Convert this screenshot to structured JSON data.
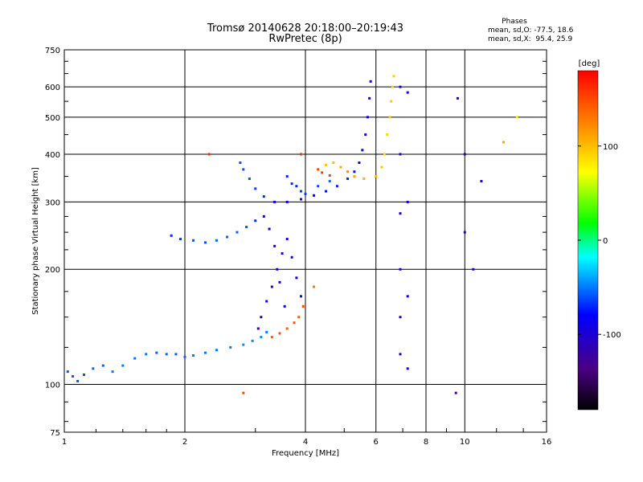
{
  "header": {
    "title_line1": "Tromsø 20140628 20:18:00–20:19:43",
    "title_line2": "RwPretec (8p)"
  },
  "phases_box": {
    "heading": "Phases",
    "o_line": "mean, sd,O: -77.5, 18.6",
    "x_line": "mean, sd,X:  95.4, 25.9"
  },
  "colorbar": {
    "label": "[deg]",
    "tick_labels": [
      "100",
      "0",
      "-100"
    ],
    "tick_values": [
      100,
      0,
      -100
    ],
    "range": [
      -180,
      180
    ]
  },
  "chart_data": {
    "type": "scatter",
    "title": "Tromsø 20140628 20:18:00–20:19:43",
    "subtitle": "RwPretec (8p)",
    "xlabel": "Frequency [MHz]",
    "ylabel": "Stationary phase Virtual Height [km]",
    "xscale": "log",
    "yscale": "log",
    "xlim": [
      1,
      16
    ],
    "ylim": [
      75,
      750
    ],
    "x_ticks": [
      1,
      2,
      4,
      6,
      8,
      10,
      16
    ],
    "y_ticks": [
      75,
      100,
      200,
      300,
      400,
      500,
      600,
      750
    ],
    "grid": true,
    "colormap": "rainbow",
    "color_label": "[deg]",
    "color_range": [
      -180,
      180
    ],
    "series": [
      {
        "points": [
          [
            1.02,
            108,
            -60
          ],
          [
            1.05,
            105,
            -60
          ],
          [
            1.08,
            102,
            -60
          ],
          [
            1.12,
            106,
            -60
          ],
          [
            1.18,
            110,
            -55
          ],
          [
            1.25,
            112,
            -55
          ],
          [
            1.32,
            108,
            -50
          ],
          [
            1.4,
            112,
            -50
          ],
          [
            1.5,
            117,
            -50
          ],
          [
            1.6,
            120,
            -50
          ],
          [
            1.7,
            121,
            -55
          ],
          [
            1.8,
            120,
            -55
          ],
          [
            1.9,
            120,
            -55
          ],
          [
            2.0,
            118,
            -55
          ],
          [
            2.1,
            119,
            -50
          ],
          [
            2.25,
            121,
            -50
          ],
          [
            2.4,
            123,
            -50
          ],
          [
            2.6,
            125,
            -48
          ],
          [
            2.8,
            127,
            -45
          ],
          [
            2.95,
            130,
            -45
          ],
          [
            3.1,
            133,
            -45
          ],
          [
            3.2,
            137,
            -50
          ]
        ]
      },
      {
        "points": [
          [
            1.85,
            245,
            -70
          ],
          [
            1.95,
            240,
            -65
          ],
          [
            2.1,
            238,
            -60
          ],
          [
            2.25,
            235,
            -60
          ],
          [
            2.4,
            238,
            -55
          ],
          [
            2.55,
            243,
            -55
          ],
          [
            2.7,
            250,
            -55
          ],
          [
            2.85,
            258,
            -60
          ],
          [
            3.0,
            268,
            -70
          ]
        ]
      },
      {
        "points": [
          [
            3.05,
            140,
            -120
          ],
          [
            3.1,
            150,
            -110
          ],
          [
            3.2,
            165,
            -105
          ],
          [
            3.3,
            180,
            -100
          ],
          [
            3.4,
            200,
            -100
          ],
          [
            3.5,
            220,
            -95
          ],
          [
            3.6,
            240,
            -90
          ],
          [
            3.7,
            215,
            -90
          ],
          [
            3.8,
            190,
            -85
          ],
          [
            3.9,
            170,
            -80
          ],
          [
            3.55,
            160,
            -90
          ],
          [
            3.45,
            185,
            -100
          ],
          [
            3.35,
            230,
            -105
          ],
          [
            3.25,
            255,
            -105
          ],
          [
            3.15,
            275,
            -110
          ]
        ]
      },
      {
        "points": [
          [
            3.3,
            133,
            140
          ],
          [
            3.45,
            136,
            145
          ],
          [
            3.6,
            140,
            140
          ],
          [
            3.75,
            145,
            145
          ],
          [
            3.85,
            150,
            140
          ],
          [
            3.95,
            160,
            150
          ]
        ]
      },
      {
        "points": [
          [
            2.75,
            380,
            -60
          ],
          [
            2.8,
            365,
            -60
          ],
          [
            2.9,
            345,
            -60
          ],
          [
            3.0,
            325,
            -65
          ],
          [
            3.15,
            310,
            -70
          ],
          [
            3.35,
            300,
            -80
          ],
          [
            3.6,
            300,
            -85
          ],
          [
            3.9,
            305,
            -85
          ],
          [
            4.2,
            312,
            -80
          ],
          [
            4.5,
            320,
            -75
          ],
          [
            4.8,
            330,
            -70
          ],
          [
            5.1,
            345,
            -70
          ],
          [
            5.3,
            360,
            -75
          ],
          [
            5.45,
            380,
            -80
          ],
          [
            5.55,
            410,
            -85
          ],
          [
            5.65,
            450,
            -90
          ],
          [
            5.72,
            500,
            -95
          ],
          [
            5.78,
            560,
            -95
          ],
          [
            5.82,
            620,
            -100
          ]
        ]
      },
      {
        "points": [
          [
            3.6,
            350,
            -70
          ],
          [
            3.7,
            335,
            -70
          ],
          [
            3.8,
            330,
            -70
          ],
          [
            3.9,
            320,
            -65
          ],
          [
            4.0,
            315,
            -65
          ],
          [
            4.3,
            330,
            -60
          ],
          [
            4.6,
            340,
            -55
          ]
        ]
      },
      {
        "points": [
          [
            4.5,
            375,
            95
          ],
          [
            4.7,
            380,
            100
          ],
          [
            4.9,
            370,
            110
          ],
          [
            5.1,
            360,
            120
          ],
          [
            5.3,
            350,
            110
          ],
          [
            5.6,
            345,
            105
          ],
          [
            6.0,
            350,
            100
          ],
          [
            6.2,
            370,
            95
          ],
          [
            6.3,
            400,
            90
          ],
          [
            6.4,
            450,
            90
          ],
          [
            6.5,
            500,
            95
          ],
          [
            6.55,
            550,
            95
          ],
          [
            6.6,
            600,
            90
          ],
          [
            6.65,
            640,
            90
          ]
        ]
      },
      {
        "points": [
          [
            4.3,
            365,
            150
          ],
          [
            4.4,
            358,
            155
          ],
          [
            4.6,
            352,
            155
          ]
        ]
      },
      {
        "points": [
          [
            6.9,
            600,
            -100
          ],
          [
            6.9,
            400,
            -100
          ],
          [
            6.9,
            280,
            -100
          ],
          [
            6.9,
            200,
            -100
          ],
          [
            6.9,
            150,
            -100
          ],
          [
            6.9,
            120,
            -100
          ],
          [
            7.2,
            580,
            -90
          ],
          [
            7.2,
            300,
            -90
          ],
          [
            7.2,
            170,
            -90
          ],
          [
            7.2,
            110,
            -90
          ],
          [
            9.6,
            560,
            -120
          ],
          [
            10.0,
            400,
            -110
          ],
          [
            10.0,
            250,
            -110
          ],
          [
            10.5,
            200,
            -100
          ],
          [
            11.0,
            340,
            -110
          ]
        ]
      },
      {
        "points": [
          [
            2.3,
            400,
            160
          ],
          [
            2.8,
            95,
            150
          ],
          [
            3.9,
            400,
            160
          ],
          [
            4.2,
            180,
            130
          ],
          [
            9.5,
            95,
            -130
          ],
          [
            12.5,
            430,
            110
          ],
          [
            13.5,
            500,
            80
          ]
        ]
      }
    ]
  }
}
